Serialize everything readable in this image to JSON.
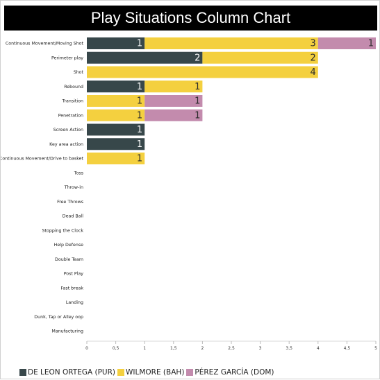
{
  "chart_data": {
    "type": "bar",
    "orientation": "horizontal",
    "stacked": true,
    "title": "Play Situations Column Chart",
    "categories": [
      "Continuous Movement/Moving Shot",
      "Perimeter play",
      "Shot",
      "Rebound",
      "Transition",
      "Penetration",
      "Screen Action",
      "Key area action",
      "Continuous Movement/Drive to basket",
      "Toss",
      "Throw-in",
      "Free Throws",
      "Dead Ball",
      "Stopping the Clock",
      "Help Defense",
      "Double Team",
      "Post Play",
      "Fast break",
      "Landing",
      "Dunk, Tap or Alley oop",
      "Manufacturing"
    ],
    "series": [
      {
        "name": "DE LEON ORTEGA (PUR)",
        "color": "#37474a",
        "values": [
          1,
          2,
          0,
          1,
          0,
          0,
          1,
          1,
          0,
          0,
          0,
          0,
          0,
          0,
          0,
          0,
          0,
          0,
          0,
          0,
          0
        ]
      },
      {
        "name": "WILMORE (BAH)",
        "color": "#f4d03f",
        "values": [
          3,
          2,
          4,
          1,
          1,
          1,
          0,
          0,
          1,
          0,
          0,
          0,
          0,
          0,
          0,
          0,
          0,
          0,
          0,
          0,
          0
        ]
      },
      {
        "name": "PÉREZ GARCÍA (DOM)",
        "color": "#c38bad",
        "values": [
          1,
          0,
          0,
          0,
          1,
          1,
          0,
          0,
          0,
          0,
          0,
          0,
          0,
          0,
          0,
          0,
          0,
          0,
          0,
          0,
          0
        ]
      }
    ],
    "x_ticks": [
      "0",
      "0,5",
      "1",
      "1,5",
      "2",
      "2,5",
      "3",
      "3,5",
      "4",
      "4,5",
      "5"
    ],
    "xlim": [
      0,
      5
    ],
    "grid": false,
    "legend_position": "bottom-left"
  }
}
